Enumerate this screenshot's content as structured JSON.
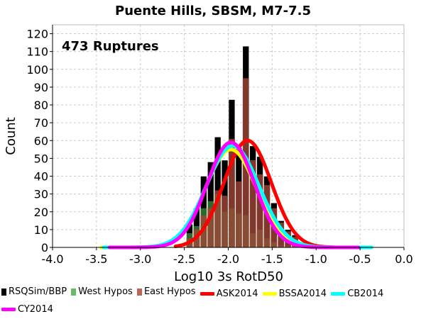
{
  "chart_data": {
    "type": "bar",
    "title": "Puente Hills, SBSM, M7-7.5",
    "annotation": "473 Ruptures",
    "xlabel": "Log10 3s RotD50",
    "ylabel": "Count",
    "xlim": [
      -4.0,
      0.0
    ],
    "ylim": [
      0,
      125
    ],
    "grid": true,
    "xticks": [
      "-4.0",
      "-3.5",
      "-3.0",
      "-2.5",
      "-2.0",
      "-1.5",
      "-1.0",
      "-0.5",
      "0.0"
    ],
    "yticks": [
      "0",
      "10",
      "20",
      "30",
      "40",
      "50",
      "60",
      "70",
      "80",
      "90",
      "100",
      "110",
      "120"
    ],
    "bin_width": 0.08,
    "bin_starts": [
      -2.48,
      -2.4,
      -2.32,
      -2.24,
      -2.16,
      -2.08,
      -2.0,
      -1.92,
      -1.84,
      -1.76,
      -1.68,
      -1.6,
      -1.52,
      -1.44,
      -1.36,
      -1.28,
      -1.2,
      -1.12,
      -1.04
    ],
    "series": [
      {
        "name": "RSQSim/BBP",
        "color": "#000000",
        "values": [
          13,
          22,
          40,
          48,
          62,
          49,
          83,
          56,
          113,
          57,
          51,
          40,
          25,
          15,
          10,
          7,
          2,
          1,
          1
        ]
      },
      {
        "name": "West Hypos",
        "color": "#66bb66",
        "values": [
          8,
          12,
          22,
          26,
          30,
          20,
          22,
          19,
          18,
          8,
          10,
          5,
          3,
          1,
          1,
          1,
          0,
          0,
          0
        ]
      },
      {
        "name": "East Hypos",
        "color": "#bb6655",
        "values": [
          5,
          10,
          18,
          22,
          32,
          29,
          61,
          37,
          95,
          49,
          41,
          35,
          22,
          14,
          9,
          6,
          2,
          1,
          1
        ]
      }
    ],
    "curves": [
      {
        "name": "ASK2014",
        "color": "#ff0000",
        "mu": -1.78,
        "sigma": 0.27,
        "peak": 60,
        "range": [
          -2.6,
          -0.8
        ]
      },
      {
        "name": "BSSA2014",
        "color": "#ffff00",
        "mu": -1.97,
        "sigma": 0.29,
        "peak": 55,
        "range": [
          -3.45,
          -0.5
        ]
      },
      {
        "name": "CB2014",
        "color": "#00ffff",
        "mu": -1.95,
        "sigma": 0.3,
        "peak": 57,
        "range": [
          -3.42,
          -0.37
        ]
      },
      {
        "name": "CY2014",
        "color": "#ff00ff",
        "mu": -1.97,
        "sigma": 0.27,
        "peak": 59,
        "range": [
          -3.35,
          -0.52
        ]
      }
    ]
  },
  "legend": {
    "items": [
      {
        "label": "RSQSim/BBP",
        "color": "#000000",
        "kind": "box"
      },
      {
        "label": "West Hypos",
        "color": "#66bb66",
        "kind": "box"
      },
      {
        "label": "East Hypos",
        "color": "#bb6655",
        "kind": "box"
      },
      {
        "label": "ASK2014",
        "color": "#ff0000",
        "kind": "line"
      },
      {
        "label": "BSSA2014",
        "color": "#ffff00",
        "kind": "line"
      },
      {
        "label": "CB2014",
        "color": "#00ffff",
        "kind": "line"
      },
      {
        "label": "CY2014",
        "color": "#ff00ff",
        "kind": "line"
      }
    ]
  }
}
